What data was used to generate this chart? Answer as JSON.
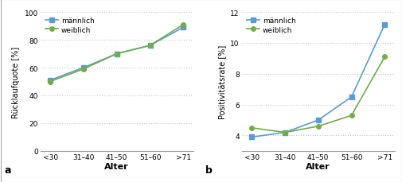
{
  "categories": [
    "<30",
    "31–40",
    "41–50",
    "51–60",
    ">71"
  ],
  "chart_a": {
    "männlich": [
      51,
      60,
      70,
      76,
      89
    ],
    "weiblich": [
      50,
      59,
      70,
      76,
      91
    ],
    "ylabel": "Rücklaufquote [%]",
    "ylim": [
      0,
      100
    ],
    "yticks": [
      0,
      20,
      40,
      60,
      80,
      100
    ],
    "label": "a"
  },
  "chart_b": {
    "männlich": [
      3.9,
      4.2,
      5.0,
      6.5,
      11.2
    ],
    "weiblich": [
      4.5,
      4.2,
      4.6,
      5.3,
      9.1
    ],
    "ylabel": "Positivitätsrate [%]",
    "ylim": [
      3,
      12
    ],
    "yticks": [
      4,
      6,
      8,
      10,
      12
    ],
    "label": "b"
  },
  "xlabel": "Alter",
  "color_männlich": "#5b9bd5",
  "color_weiblich": "#70ad47",
  "marker_männlich": "s",
  "marker_weiblich": "o",
  "legend_labels": [
    "männlich",
    "weiblich"
  ],
  "background_color": "#ffffff",
  "grid_color": "#c8c8c8",
  "border_color": "#aaaaaa"
}
